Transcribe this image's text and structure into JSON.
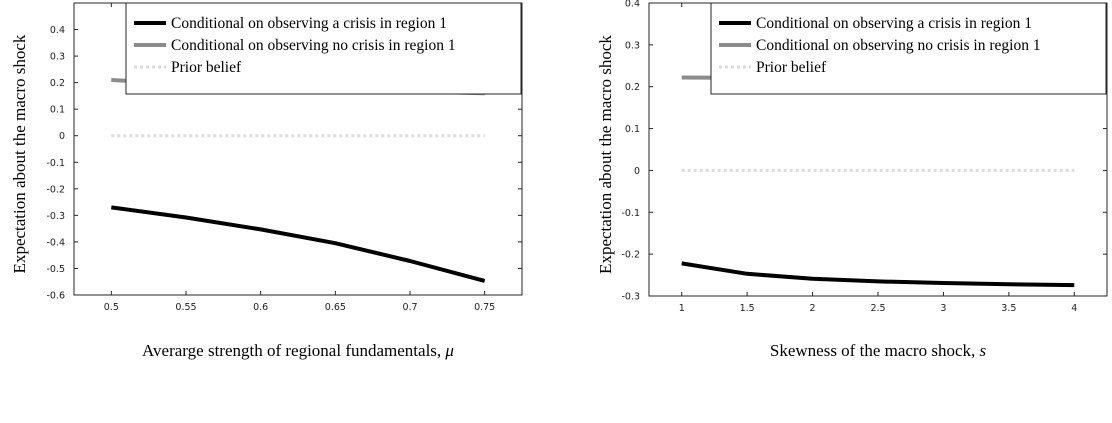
{
  "chart_data": [
    {
      "type": "line",
      "xlabel": "Averarge strength of regional fundamentals, ",
      "xlabel_symbol": "μ",
      "ylabel": "Expectation about the macro shock",
      "xlim": [
        0.475,
        0.775
      ],
      "ylim": [
        -0.6,
        0.5
      ],
      "xticks": [
        0.5,
        0.55,
        0.6,
        0.65,
        0.7,
        0.75
      ],
      "xtick_labels": [
        "0.5",
        "0.55",
        "0.6",
        "0.65",
        "0.7",
        "0.75"
      ],
      "yticks": [
        -0.6,
        -0.5,
        -0.4,
        -0.3,
        -0.2,
        -0.1,
        0,
        0.1,
        0.2,
        0.3,
        0.4
      ],
      "ytick_labels": [
        "-0.6",
        "-0.5",
        "-0.4",
        "-0.3",
        "-0.2",
        "-0.1",
        "0",
        "0.1",
        "0.2",
        "0.3",
        "0.4"
      ],
      "legend_position": "top-right",
      "series": [
        {
          "name": "Conditional on observing a crisis in region 1",
          "color": "#000000",
          "style": "solid",
          "x": [
            0.5,
            0.55,
            0.6,
            0.65,
            0.7,
            0.75
          ],
          "y": [
            -0.27,
            -0.308,
            -0.353,
            -0.405,
            -0.472,
            -0.547
          ]
        },
        {
          "name": "Conditional on observing no crisis in region 1",
          "color": "#8c8c8c",
          "style": "solid",
          "x": [
            0.5,
            0.55,
            0.6,
            0.65,
            0.7,
            0.75
          ],
          "y": [
            0.21,
            0.196,
            0.184,
            0.175,
            0.167,
            0.16
          ]
        },
        {
          "name": "Prior belief",
          "color": "#dcdcdc",
          "style": "dotted",
          "x": [
            0.5,
            0.55,
            0.6,
            0.65,
            0.7,
            0.75
          ],
          "y": [
            0,
            0,
            0,
            0,
            0,
            0
          ]
        }
      ]
    },
    {
      "type": "line",
      "xlabel": "Skewness of the macro shock, ",
      "xlabel_symbol": "s",
      "ylabel": "Expectation about the macro shock",
      "xlim": [
        0.75,
        4.25
      ],
      "ylim": [
        -0.3,
        0.4
      ],
      "xticks": [
        1,
        1.5,
        2,
        2.5,
        3,
        3.5,
        4
      ],
      "xtick_labels": [
        "1",
        "1.5",
        "2",
        "2.5",
        "3",
        "3.5",
        "4"
      ],
      "yticks": [
        -0.3,
        -0.2,
        -0.1,
        0,
        0.1,
        0.2,
        0.3,
        0.4
      ],
      "ytick_labels": [
        "-0.3",
        "-0.2",
        "-0.1",
        "0",
        "0.1",
        "0.2",
        "0.3",
        "0.4"
      ],
      "legend_position": "top-right",
      "series": [
        {
          "name": "Conditional on observing a crisis in region 1",
          "color": "#000000",
          "style": "solid",
          "x": [
            1,
            1.5,
            2,
            2.5,
            3,
            3.5,
            4
          ],
          "y": [
            -0.222,
            -0.247,
            -0.259,
            -0.265,
            -0.269,
            -0.272,
            -0.274
          ]
        },
        {
          "name": "Conditional on observing no crisis in region 1",
          "color": "#8c8c8c",
          "style": "solid",
          "x": [
            1,
            1.5,
            2,
            2.5,
            3,
            3.5,
            4
          ],
          "y": [
            0.222,
            0.221,
            0.216,
            0.212,
            0.21,
            0.208,
            0.206
          ]
        },
        {
          "name": "Prior belief",
          "color": "#dcdcdc",
          "style": "dotted",
          "x": [
            1,
            1.5,
            2,
            2.5,
            3,
            3.5,
            4
          ],
          "y": [
            0,
            0,
            0,
            0,
            0,
            0,
            0
          ]
        }
      ]
    }
  ]
}
